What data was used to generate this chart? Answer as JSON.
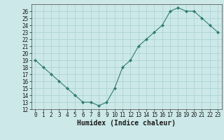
{
  "x": [
    0,
    1,
    2,
    3,
    4,
    5,
    6,
    7,
    8,
    9,
    10,
    11,
    12,
    13,
    14,
    15,
    16,
    17,
    18,
    19,
    20,
    21,
    22,
    23
  ],
  "y": [
    19,
    18,
    17,
    16,
    15,
    14,
    13,
    13,
    12.5,
    13,
    15,
    18,
    19,
    21,
    22,
    23,
    24,
    26,
    26.5,
    26,
    26,
    25,
    24,
    23
  ],
  "xlabel": "Humidex (Indice chaleur)",
  "ylim": [
    12,
    27
  ],
  "xlim": [
    -0.5,
    23.5
  ],
  "yticks": [
    12,
    13,
    14,
    15,
    16,
    17,
    18,
    19,
    20,
    21,
    22,
    23,
    24,
    25,
    26
  ],
  "xticks": [
    0,
    1,
    2,
    3,
    4,
    5,
    6,
    7,
    8,
    9,
    10,
    11,
    12,
    13,
    14,
    15,
    16,
    17,
    18,
    19,
    20,
    21,
    22,
    23
  ],
  "line_color": "#2e7d6e",
  "marker_color": "#2e7d6e",
  "bg_color": "#cce8e8",
  "grid_color": "#aad0d0",
  "tick_label_fontsize": 5.5,
  "xlabel_fontsize": 7.0
}
